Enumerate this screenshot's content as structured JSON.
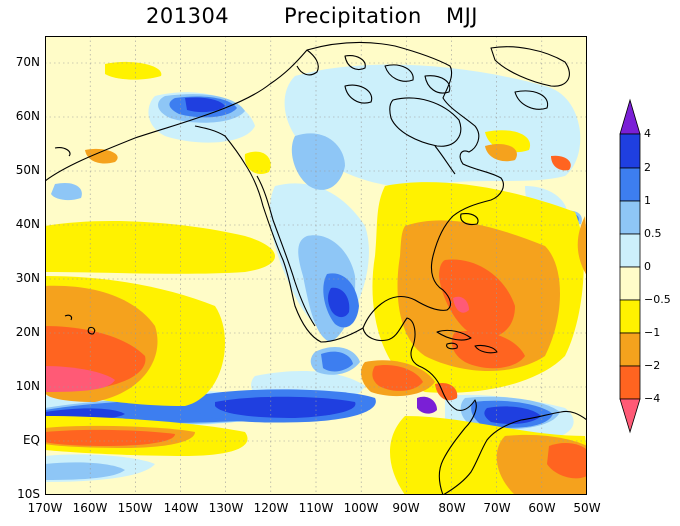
{
  "title": {
    "date": "201304",
    "variable": "Precipitation",
    "season": "MJJ"
  },
  "map": {
    "type": "precipitation anomaly map",
    "lon_range": [
      -170,
      -50
    ],
    "lat_range": [
      -10,
      75
    ],
    "lat_labels": [
      "70N",
      "60N",
      "50N",
      "40N",
      "30N",
      "20N",
      "10N",
      "EQ",
      "10S"
    ],
    "lon_labels": [
      "170W",
      "160W",
      "150W",
      "140W",
      "130W",
      "120W",
      "110W",
      "100W",
      "90W",
      "80W",
      "70W",
      "60W",
      "50W"
    ],
    "background_color": "#fffcc8"
  },
  "colorbar": {
    "labels": [
      "4",
      "2",
      "1",
      "0.5",
      "0",
      "−0.5",
      "−1",
      "−2",
      "−4"
    ],
    "colors": {
      "gt4": "#7a1fd6",
      "2_4": "#1f3fe0",
      "1_2": "#3d7ef0",
      "05_1": "#8ec6f6",
      "0_05": "#ccf0fb",
      "m05_0": "#fffcc8",
      "m1_m05": "#fff200",
      "m2_m1": "#f5a21d",
      "m4_m2": "#ff6420",
      "ltm4": "#ff5a76"
    }
  }
}
